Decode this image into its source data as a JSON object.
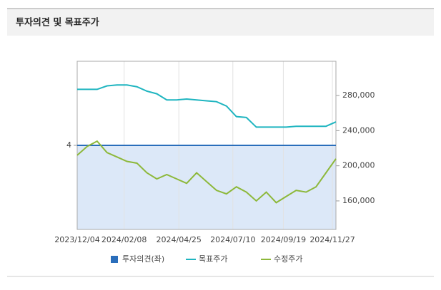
{
  "chart_data": {
    "type": "line",
    "title": "투자의견 및 목표주가",
    "xlim": [
      "2023/12/04",
      "2024/12/02"
    ],
    "xticks": [
      "2023/12/04",
      "2024/02/08",
      "2024/04/25",
      "2024/07/10",
      "2024/09/19",
      "2024/11/27"
    ],
    "ylim": [
      2,
      6
    ],
    "yticks": [
      4
    ],
    "y2lim": [
      127500,
      319000
    ],
    "y2ticks": [
      {
        "value": 160000,
        "label": "160,000"
      },
      {
        "value": 200000,
        "label": "200,000"
      },
      {
        "value": 240000,
        "label": "240,000"
      },
      {
        "value": 280000,
        "label": "280,000"
      }
    ],
    "grid": true,
    "series": [
      {
        "name": "투자의견(좌)",
        "color": "#2a6ebb",
        "fill": "#dce8f8",
        "x": [
          "2023/12/04",
          "2024/12/02"
        ],
        "values": [
          4,
          4
        ]
      },
      {
        "name": "목표주가",
        "color": "#1fb5c0",
        "axis": "y2",
        "x": [
          "2023/12/04",
          "2023/12/18",
          "2024/01/01",
          "2024/01/15",
          "2024/01/29",
          "2024/02/12",
          "2024/02/26",
          "2024/03/11",
          "2024/03/25",
          "2024/04/08",
          "2024/04/22",
          "2024/05/06",
          "2024/05/20",
          "2024/06/03",
          "2024/06/17",
          "2024/07/01",
          "2024/07/15",
          "2024/07/29",
          "2024/08/12",
          "2024/08/26",
          "2024/09/09",
          "2024/09/23",
          "2024/10/07",
          "2024/10/21",
          "2024/11/04",
          "2024/11/18",
          "2024/12/02"
        ],
        "values": [
          287000,
          287000,
          287000,
          291000,
          292000,
          292000,
          290000,
          285000,
          282000,
          275000,
          275000,
          276000,
          275000,
          274000,
          273000,
          268000,
          256000,
          255000,
          244000,
          244000,
          244000,
          244000,
          245000,
          245000,
          245000,
          245000,
          250000
        ]
      },
      {
        "name": "수정주가",
        "color": "#8db83a",
        "axis": "y2",
        "x": [
          "2023/12/04",
          "2023/12/18",
          "2024/01/01",
          "2024/01/15",
          "2024/01/29",
          "2024/02/12",
          "2024/02/26",
          "2024/03/11",
          "2024/03/25",
          "2024/04/08",
          "2024/04/22",
          "2024/05/06",
          "2024/05/20",
          "2024/06/03",
          "2024/06/17",
          "2024/07/01",
          "2024/07/15",
          "2024/07/29",
          "2024/08/12",
          "2024/08/26",
          "2024/09/09",
          "2024/09/23",
          "2024/10/07",
          "2024/10/21",
          "2024/11/04",
          "2024/11/18",
          "2024/12/02"
        ],
        "values": [
          212000,
          222000,
          228000,
          215000,
          210000,
          205000,
          203000,
          192000,
          185000,
          190000,
          185000,
          180000,
          192000,
          182000,
          172000,
          168000,
          176000,
          170000,
          160000,
          170000,
          158000,
          165000,
          172000,
          170000,
          176000,
          192000,
          208000
        ]
      }
    ]
  }
}
